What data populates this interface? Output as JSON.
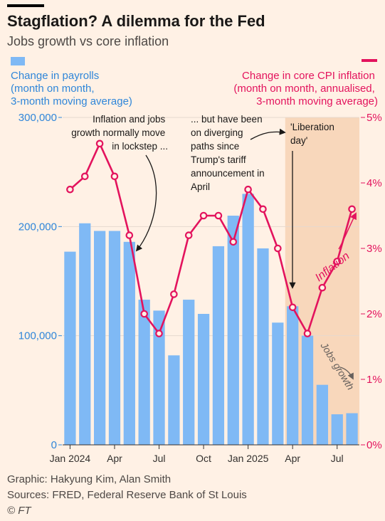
{
  "header": {
    "title": "Stagflation? A dilemma for the Fed",
    "subtitle": "Jobs growth vs core inflation"
  },
  "colors": {
    "background": "#fff1e5",
    "bars": "#7fb9f5",
    "line": "#e3135d",
    "left_axis_text": "#2f86d9",
    "shading": "#f8d7bb"
  },
  "legend": {
    "left": [
      "Change in payrolls",
      "(month on month,",
      "3-month moving average)"
    ],
    "right": [
      "Change in core CPI inflation",
      "(month on month, annualised,",
      "3-month moving average)"
    ]
  },
  "annotations": {
    "note1": [
      "Inflation and jobs",
      "growth normally move",
      "in lockstep ..."
    ],
    "note2": [
      "... but have been",
      "on diverging",
      "paths since",
      "Trump's tariff",
      "announcement in",
      "April"
    ],
    "liberation": [
      "'Liberation",
      "day'"
    ],
    "inflation_label": "Inflation",
    "jobs_label": "Jobs growth"
  },
  "chart_data": {
    "type": "bar+line",
    "x": [
      "2024-01",
      "2024-02",
      "2024-03",
      "2024-04",
      "2024-05",
      "2024-06",
      "2024-07",
      "2024-08",
      "2024-09",
      "2024-10",
      "2024-11",
      "2024-12",
      "2025-01",
      "2025-02",
      "2025-03",
      "2025-04",
      "2025-05",
      "2025-06",
      "2025-07",
      "2025-08"
    ],
    "x_tick_labels": [
      "Jan 2024",
      "Apr",
      "Jul",
      "Oct",
      "Jan 2025",
      "Apr",
      "Jul"
    ],
    "x_tick_dates": [
      "2024-01",
      "2024-04",
      "2024-07",
      "2024-10",
      "2025-01",
      "2025-04",
      "2025-07"
    ],
    "series": [
      {
        "axis": "left",
        "type": "bar",
        "values": [
          177000,
          203000,
          196000,
          196000,
          186000,
          133000,
          123000,
          82000,
          133000,
          120000,
          182000,
          210000,
          230000,
          180000,
          112000,
          127000,
          100000,
          55000,
          28000,
          29000
        ]
      },
      {
        "axis": "right",
        "type": "line",
        "values": [
          3.9,
          4.1,
          4.6,
          4.1,
          3.2,
          2.0,
          1.7,
          2.3,
          3.2,
          3.5,
          3.5,
          3.1,
          3.9,
          3.6,
          3.0,
          2.1,
          1.7,
          2.4,
          2.8,
          3.6
        ]
      }
    ],
    "y_left": {
      "ticks": [
        0,
        100000,
        200000,
        300000
      ],
      "tick_labels": [
        "0",
        "100,000",
        "200,000",
        "300,000"
      ],
      "ylim": [
        0,
        300000
      ]
    },
    "y_right": {
      "ticks": [
        0,
        1,
        2,
        3,
        4,
        5
      ],
      "tick_labels": [
        "0%",
        "1%",
        "2%",
        "3%",
        "4%",
        "5%"
      ],
      "ylim": [
        0,
        5
      ]
    },
    "highlight_start": "2025-04",
    "grid": true
  },
  "footer": {
    "graphic": "Graphic: Hakyung Kim, Alan Smith",
    "sources": "Sources: FRED, Federal Reserve Bank of St Louis",
    "copyright": "© FT"
  }
}
